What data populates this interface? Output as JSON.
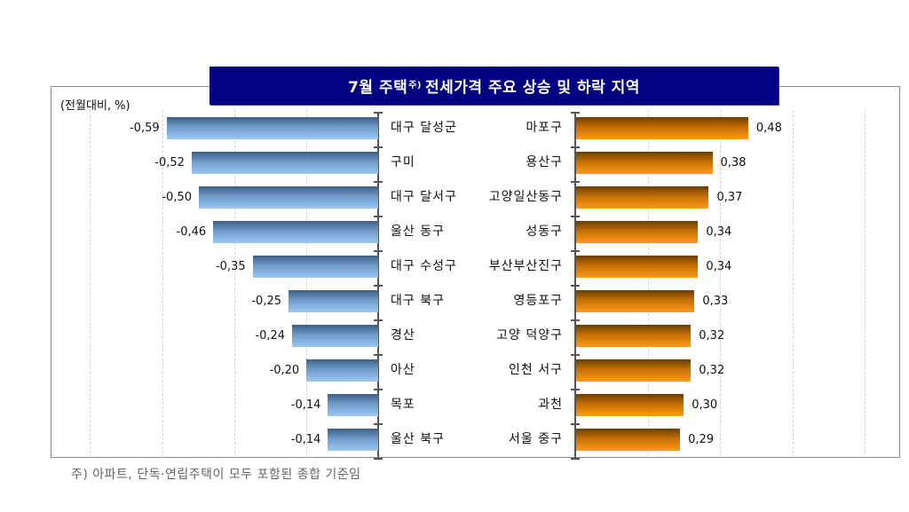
{
  "title": {
    "main_before": "7월 주택",
    "superscript": "주)",
    "main_after": "전세가격 주요 상승 및 하락 지역"
  },
  "unit_label": "(전월대비, %)",
  "footnote": "주) 아파트, 단독·연립주택이 모두 포함된 종합 기준임",
  "colors": {
    "title_bg": "#000080",
    "decline_bar": "#6f9ac9",
    "rise_bar": "#e8850a"
  },
  "decline": [
    {
      "region": "대구 달성군",
      "value": -0.59,
      "label": "-0,59"
    },
    {
      "region": "구미",
      "value": -0.52,
      "label": "-0,52"
    },
    {
      "region": "대구 달서구",
      "value": -0.5,
      "label": "-0,50"
    },
    {
      "region": "울산 동구",
      "value": -0.46,
      "label": "-0,46"
    },
    {
      "region": "대구 수성구",
      "value": -0.35,
      "label": "-0,35"
    },
    {
      "region": "대구 북구",
      "value": -0.25,
      "label": "-0,25"
    },
    {
      "region": "경산",
      "value": -0.24,
      "label": "-0,24"
    },
    {
      "region": "아산",
      "value": -0.2,
      "label": "-0,20"
    },
    {
      "region": "목포",
      "value": -0.14,
      "label": "-0,14"
    },
    {
      "region": "울산 북구",
      "value": -0.14,
      "label": "-0,14"
    }
  ],
  "rise": [
    {
      "region": "마포구",
      "value": 0.48,
      "label": "0,48"
    },
    {
      "region": "용산구",
      "value": 0.38,
      "label": "0,38"
    },
    {
      "region": "고양일산동구",
      "value": 0.37,
      "label": "0,37"
    },
    {
      "region": "성동구",
      "value": 0.34,
      "label": "0,34"
    },
    {
      "region": "부산부산진구",
      "value": 0.34,
      "label": "0,34"
    },
    {
      "region": "영등포구",
      "value": 0.33,
      "label": "0,33"
    },
    {
      "region": "고양 덕양구",
      "value": 0.32,
      "label": "0,32"
    },
    {
      "region": "인천 서구",
      "value": 0.32,
      "label": "0,32"
    },
    {
      "region": "과천",
      "value": 0.3,
      "label": "0,30"
    },
    {
      "region": "서울 중구",
      "value": 0.29,
      "label": "0,29"
    }
  ],
  "chart_data": [
    {
      "type": "bar",
      "orientation": "horizontal",
      "title": "7월 주택 전세가격 주요 하락 지역",
      "ylabel": "(전월대비, %)",
      "categories": [
        "대구 달성군",
        "구미",
        "대구 달서구",
        "울산 동구",
        "대구 수성구",
        "대구 북구",
        "경산",
        "아산",
        "목포",
        "울산 북구"
      ],
      "values": [
        -0.59,
        -0.52,
        -0.5,
        -0.46,
        -0.35,
        -0.25,
        -0.24,
        -0.2,
        -0.14,
        -0.14
      ],
      "xlim": [
        -0.8,
        0
      ],
      "grid": true
    },
    {
      "type": "bar",
      "orientation": "horizontal",
      "title": "7월 주택 전세가격 주요 상승 지역",
      "ylabel": "(전월대비, %)",
      "categories": [
        "마포구",
        "용산구",
        "고양일산동구",
        "성동구",
        "부산부산진구",
        "영등포구",
        "고양 덕양구",
        "인천 서구",
        "과천",
        "서울 중구"
      ],
      "values": [
        0.48,
        0.38,
        0.37,
        0.34,
        0.34,
        0.33,
        0.32,
        0.32,
        0.3,
        0.29
      ],
      "xlim": [
        0,
        0.8
      ],
      "grid": true
    }
  ]
}
